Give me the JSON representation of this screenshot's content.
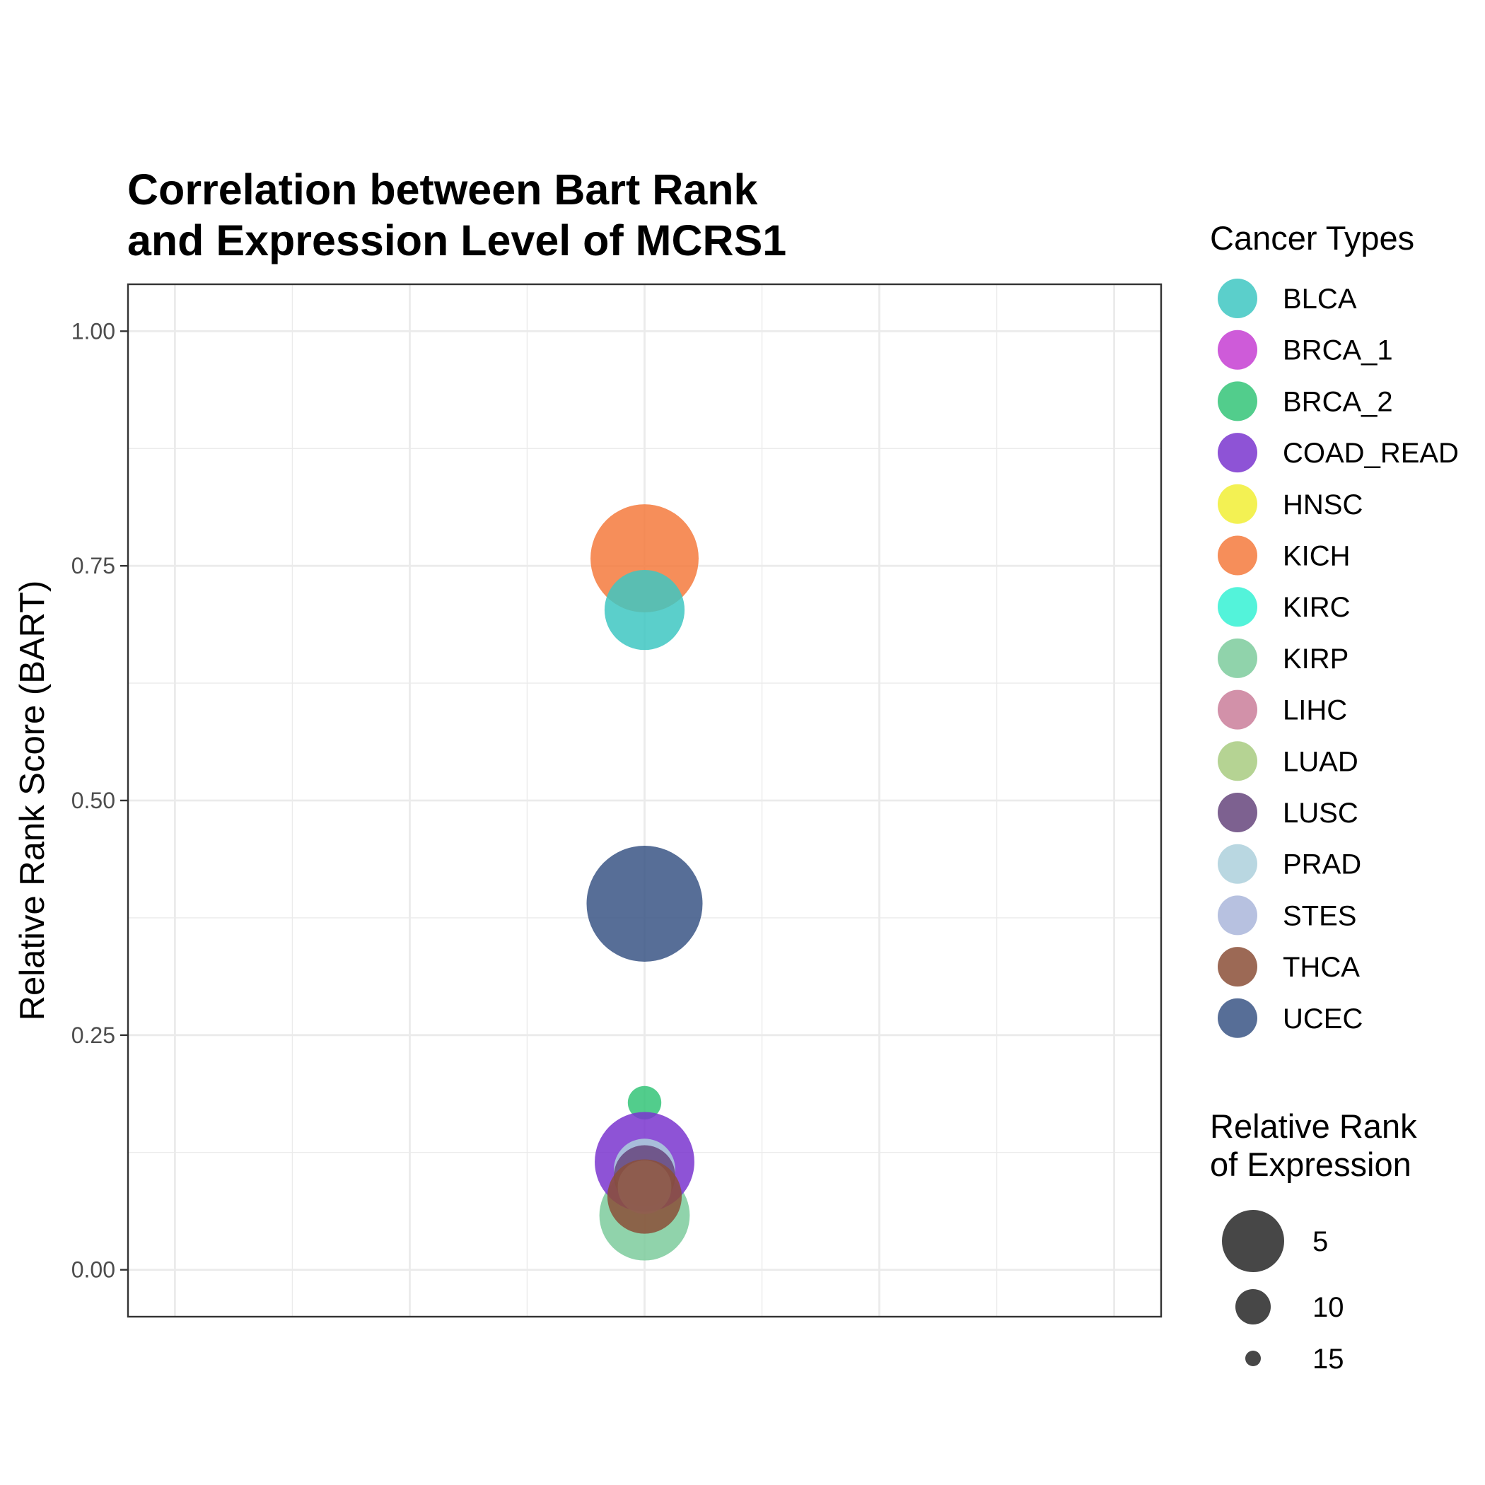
{
  "chart_data": {
    "type": "scatter",
    "title_lines": [
      "Correlation between Bart Rank",
      "and Expression Level of MCRS1"
    ],
    "xlabel": "",
    "ylabel": "Relative Rank Score (BART)",
    "ylim": [
      -0.05,
      1.05
    ],
    "y_ticks": [
      0.0,
      0.25,
      0.5,
      0.75,
      1.0
    ],
    "y_tick_labels": [
      "0.00",
      "0.25",
      "0.50",
      "0.75",
      "1.00"
    ],
    "x_major_count": 5,
    "grid": true,
    "size_scale": {
      "min_rank": 1,
      "max_rank": 16
    },
    "points": [
      {
        "name": "KIRP",
        "y": 0.058,
        "rank": 7,
        "color": "#7CCB9C"
      },
      {
        "name": "KICH",
        "y": 0.758,
        "rank": 3,
        "color": "#F47A3D"
      },
      {
        "name": "BLCA",
        "y": 0.703,
        "rank": 9,
        "color": "#3EC7C2"
      },
      {
        "name": "UCEC",
        "y": 0.39,
        "rank": 1,
        "color": "#3A5585"
      },
      {
        "name": "BRCA_2",
        "y": 0.178,
        "rank": 15,
        "color": "#34C478"
      },
      {
        "name": "COAD_READ",
        "y": 0.115,
        "rank": 5,
        "color": "#7A35CF"
      },
      {
        "name": "PRAD",
        "y": 0.107,
        "rank": 12,
        "color": "#ADD0DC"
      },
      {
        "name": "LUSC",
        "y": 0.1,
        "rank": 12,
        "color": "#66457D"
      },
      {
        "name": "STES",
        "y": 0.088,
        "rank": 13,
        "color": "#AAB6DB"
      },
      {
        "name": "THCA",
        "y": 0.078,
        "rank": 10,
        "color": "#8B4F37"
      }
    ]
  },
  "legend": {
    "title": "Cancer Types",
    "items": [
      {
        "name": "BLCA",
        "color": "#3EC7C2"
      },
      {
        "name": "BRCA_1",
        "color": "#C53ED2"
      },
      {
        "name": "BRCA_2",
        "color": "#34C478"
      },
      {
        "name": "COAD_READ",
        "color": "#7A35CF"
      },
      {
        "name": "HNSC",
        "color": "#F1EE35"
      },
      {
        "name": "KICH",
        "color": "#F47A3D"
      },
      {
        "name": "KIRC",
        "color": "#35F1D3"
      },
      {
        "name": "KIRP",
        "color": "#7CCB9C"
      },
      {
        "name": "LIHC",
        "color": "#CA7E9A"
      },
      {
        "name": "LUAD",
        "color": "#A8CB80"
      },
      {
        "name": "LUSC",
        "color": "#66457D"
      },
      {
        "name": "PRAD",
        "color": "#ADD0DC"
      },
      {
        "name": "STES",
        "color": "#AAB6DB"
      },
      {
        "name": "THCA",
        "color": "#8B4F37"
      },
      {
        "name": "UCEC",
        "color": "#3A5585"
      }
    ]
  },
  "size_legend": {
    "title_lines": [
      "Relative Rank",
      "of Expression"
    ],
    "items": [
      {
        "label": "5",
        "rank": 5
      },
      {
        "label": "10",
        "rank": 10
      },
      {
        "label": "15",
        "rank": 15
      }
    ],
    "color": "#333333"
  }
}
